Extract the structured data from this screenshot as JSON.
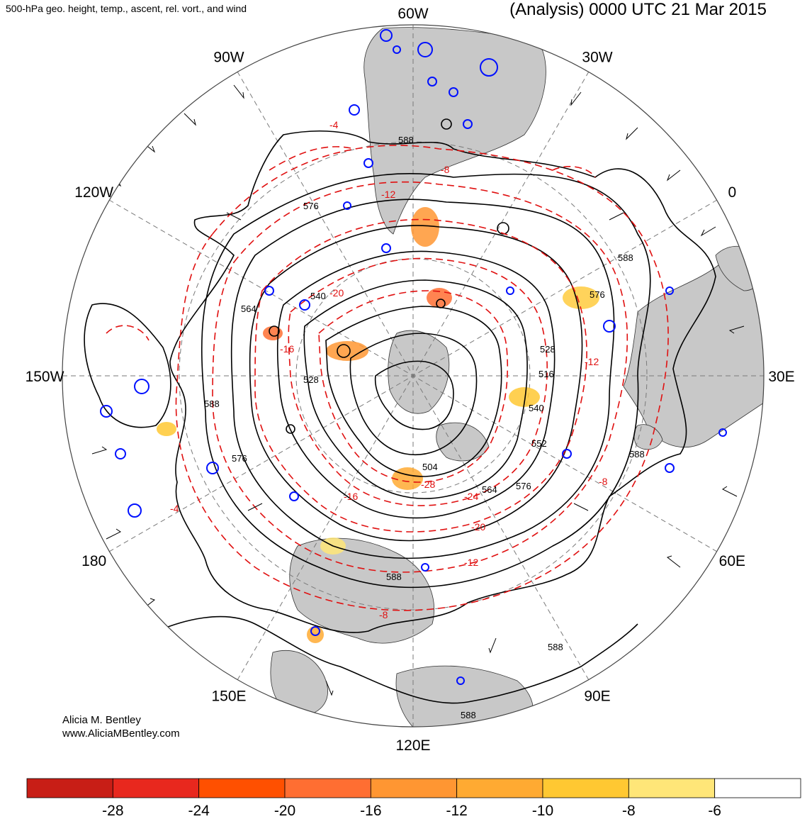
{
  "header": {
    "product_title": "500-hPa geo. height, temp., ascent, rel. vort., and wind",
    "analysis_time": "(Analysis) 0000 UTC 21 Mar 2015"
  },
  "credits": {
    "author": "Alicia M. Bentley",
    "website": "www.AliciaMBentley.com"
  },
  "map": {
    "projection": "north polar stereographic",
    "longitude_labels": [
      {
        "id": "lon-60w",
        "text": "60W",
        "deg": 0
      },
      {
        "id": "lon-30w",
        "text": "30W",
        "deg": 30
      },
      {
        "id": "lon-0",
        "text": "0",
        "deg": 60
      },
      {
        "id": "lon-30e",
        "text": "30E",
        "deg": 90
      },
      {
        "id": "lon-60e",
        "text": "60E",
        "deg": 120
      },
      {
        "id": "lon-90e",
        "text": "90E",
        "deg": 150
      },
      {
        "id": "lon-120e",
        "text": "120E",
        "deg": 180
      },
      {
        "id": "lon-150e",
        "text": "150E",
        "deg": 210
      },
      {
        "id": "lon-180",
        "text": "180",
        "deg": 240
      },
      {
        "id": "lon-150w",
        "text": "150W",
        "deg": 270
      },
      {
        "id": "lon-120w",
        "text": "120W",
        "deg": 300
      },
      {
        "id": "lon-90w",
        "text": "90W",
        "deg": 330
      }
    ],
    "height_contour_labels": [
      "588",
      "576",
      "564",
      "552",
      "540",
      "528",
      "516",
      "504"
    ],
    "temperature_contour_labels": [
      "-4",
      "-8",
      "-12",
      "-16",
      "-20",
      "-24",
      "-28"
    ],
    "colors": {
      "land": "#c8c8c8",
      "height_contour": "#000000",
      "temperature_contour": "#e01010",
      "vorticity_contour": "#0010ff",
      "grid": "#7a7a7a"
    }
  },
  "legend": {
    "colorbar_tick_labels": [
      "-28",
      "-24",
      "-20",
      "-16",
      "-12",
      "-10",
      "-8",
      "-6"
    ],
    "colorbar_colors": [
      "#c81e16",
      "#e8281e",
      "#ff5000",
      "#ff6e32",
      "#ff9632",
      "#ffaa32",
      "#ffc832",
      "#ffe678",
      "#ffffff"
    ]
  }
}
